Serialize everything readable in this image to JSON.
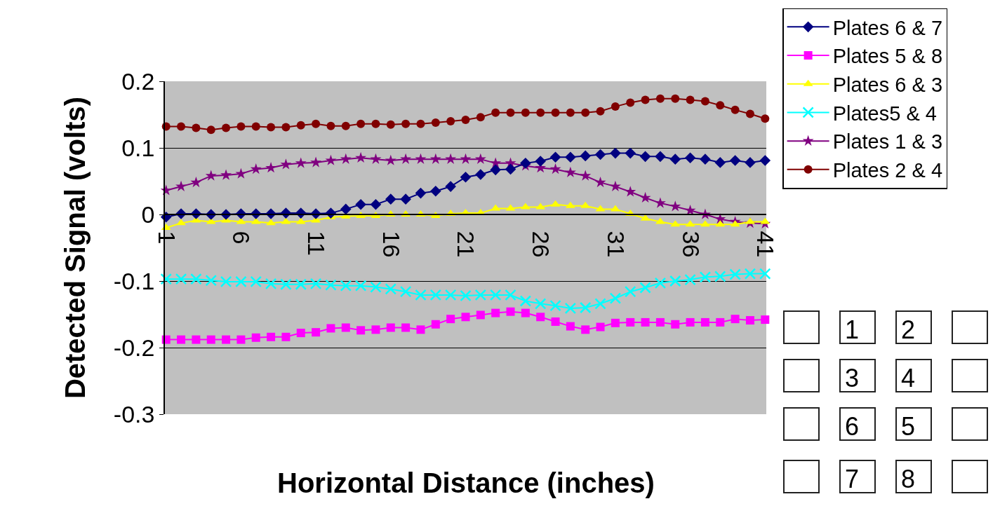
{
  "chart_data": {
    "type": "line",
    "xlabel": "Horizontal Distance (inches)",
    "ylabel": "Detected Signal (volts)",
    "categories": [
      "1",
      null,
      null,
      null,
      null,
      "6",
      null,
      null,
      null,
      null,
      "11",
      null,
      null,
      null,
      null,
      "16",
      null,
      null,
      null,
      null,
      "21",
      null,
      null,
      null,
      null,
      "26",
      null,
      null,
      null,
      null,
      "31",
      null,
      null,
      null,
      null,
      "36",
      null,
      null,
      null,
      null,
      "41"
    ],
    "ylim": [
      -0.3,
      0.2
    ],
    "yticks": [
      -0.3,
      -0.2,
      -0.1,
      0,
      0.1,
      0.2
    ],
    "grid": "y",
    "legend": "top right",
    "line_style": "solid",
    "series": [
      {
        "name": "Plates 6 & 7",
        "color": "#000080",
        "marker": "diamond",
        "values": [
          -0.004,
          0.001,
          0.001,
          0,
          0,
          0.001,
          0.001,
          0.001,
          0.002,
          0.002,
          0.001,
          0.002,
          0.008,
          0.015,
          0.015,
          0.023,
          0.023,
          0.032,
          0.035,
          0.042,
          0.056,
          0.06,
          0.067,
          0.068,
          0.077,
          0.08,
          0.086,
          0.086,
          0.088,
          0.09,
          0.092,
          0.092,
          0.087,
          0.087,
          0.083,
          0.085,
          0.083,
          0.078,
          0.081,
          0.078,
          0.081
        ]
      },
      {
        "name": "Plates 5 & 8",
        "color": "#ff00ff",
        "marker": "square",
        "values": [
          -0.188,
          -0.188,
          -0.188,
          -0.188,
          -0.188,
          -0.188,
          -0.185,
          -0.184,
          -0.184,
          -0.178,
          -0.177,
          -0.171,
          -0.17,
          -0.174,
          -0.173,
          -0.17,
          -0.17,
          -0.173,
          -0.165,
          -0.157,
          -0.154,
          -0.151,
          -0.148,
          -0.146,
          -0.148,
          -0.154,
          -0.161,
          -0.168,
          -0.173,
          -0.169,
          -0.163,
          -0.162,
          -0.162,
          -0.162,
          -0.165,
          -0.162,
          -0.162,
          -0.162,
          -0.157,
          -0.159,
          -0.158
        ]
      },
      {
        "name": "Plates 6 & 3",
        "color": "#ffff00",
        "marker": "triangle",
        "values": [
          -0.02,
          -0.013,
          -0.009,
          -0.011,
          -0.009,
          -0.011,
          -0.011,
          -0.013,
          -0.011,
          -0.011,
          -0.009,
          -0.004,
          -0.003,
          -0.002,
          -0.002,
          0,
          0,
          0,
          -0.002,
          0.001,
          0.002,
          0.002,
          0.009,
          0.009,
          0.011,
          0.011,
          0.015,
          0.013,
          0.013,
          0.008,
          0.008,
          0.001,
          -0.006,
          -0.011,
          -0.015,
          -0.015,
          -0.015,
          -0.015,
          -0.015,
          -0.011,
          -0.011
        ]
      },
      {
        "name": "Plates5 & 4",
        "color": "#00ffff",
        "marker": "cross",
        "values": [
          -0.097,
          -0.097,
          -0.097,
          -0.099,
          -0.101,
          -0.101,
          -0.101,
          -0.104,
          -0.105,
          -0.105,
          -0.104,
          -0.106,
          -0.107,
          -0.107,
          -0.109,
          -0.112,
          -0.116,
          -0.121,
          -0.121,
          -0.121,
          -0.122,
          -0.121,
          -0.121,
          -0.121,
          -0.13,
          -0.134,
          -0.137,
          -0.141,
          -0.14,
          -0.134,
          -0.126,
          -0.116,
          -0.11,
          -0.103,
          -0.1,
          -0.098,
          -0.094,
          -0.093,
          -0.09,
          -0.089,
          -0.089
        ]
      },
      {
        "name": "Plates 1 & 3",
        "color": "#800080",
        "marker": "star",
        "values": [
          0.036,
          0.042,
          0.048,
          0.058,
          0.059,
          0.061,
          0.068,
          0.07,
          0.075,
          0.077,
          0.078,
          0.081,
          0.083,
          0.085,
          0.083,
          0.081,
          0.083,
          0.083,
          0.083,
          0.083,
          0.083,
          0.083,
          0.077,
          0.077,
          0.073,
          0.07,
          0.068,
          0.063,
          0.058,
          0.048,
          0.042,
          0.034,
          0.025,
          0.017,
          0.012,
          0.006,
          0.0,
          -0.007,
          -0.011,
          -0.013,
          -0.014
        ]
      },
      {
        "name": "Plates 2 & 4",
        "color": "#800000",
        "marker": "circle",
        "values": [
          0.132,
          0.132,
          0.13,
          0.127,
          0.13,
          0.132,
          0.132,
          0.131,
          0.131,
          0.134,
          0.136,
          0.133,
          0.133,
          0.136,
          0.136,
          0.135,
          0.136,
          0.136,
          0.138,
          0.14,
          0.142,
          0.146,
          0.153,
          0.153,
          0.153,
          0.153,
          0.153,
          0.153,
          0.153,
          0.155,
          0.162,
          0.168,
          0.172,
          0.174,
          0.174,
          0.172,
          0.17,
          0.164,
          0.157,
          0.151,
          0.144
        ]
      }
    ],
    "annotations": [
      "1 2",
      "3 4",
      "6 5",
      "7 8"
    ]
  }
}
